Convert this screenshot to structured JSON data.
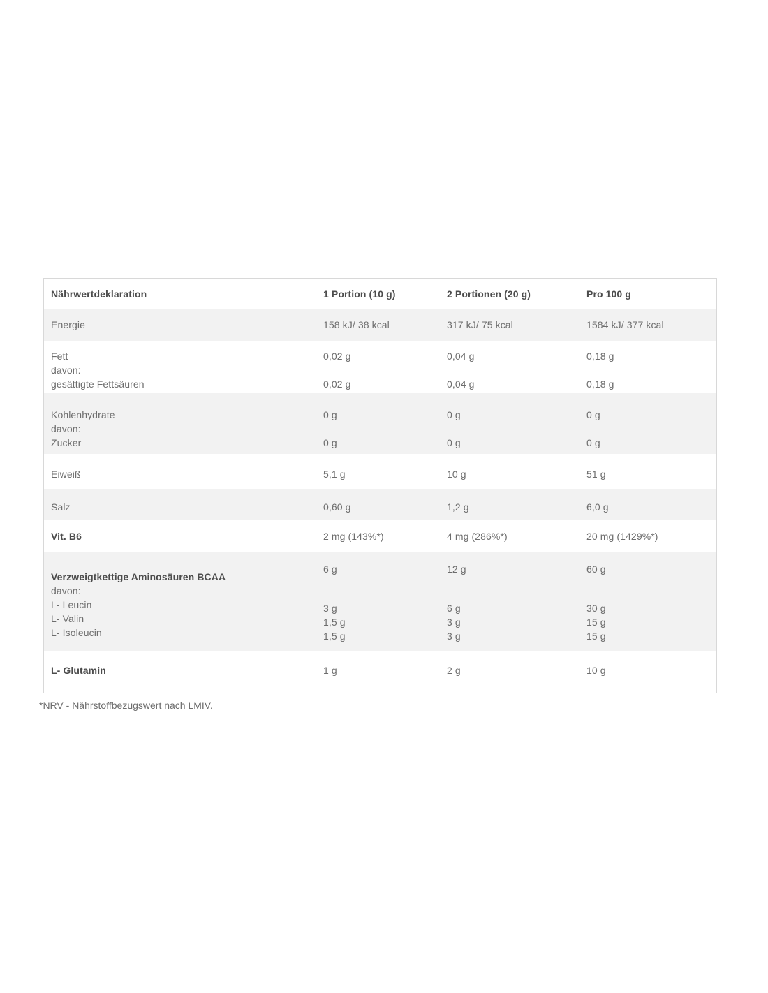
{
  "colors": {
    "row_alt_bg": "#f2f2f2",
    "text_regular": "#6d6d6d",
    "text_bold": "#4c4c4c",
    "table_border": "#d8d8d8"
  },
  "table": {
    "header": {
      "label": "Nährwertdeklaration",
      "portion1": "1 Portion (10 g)",
      "portion2": "2 Portionen (20 g)",
      "per100": "Pro 100 g"
    },
    "rows": {
      "energie": {
        "label": "Energie",
        "v1": "158 kJ/ 38 kcal",
        "v2": "317 kJ/ 75 kcal",
        "v3": "1584 kJ/ 377 kcal"
      },
      "fett": {
        "label": "Fett",
        "davon_label": "davon:",
        "sub_label": "gesättigte Fettsäuren",
        "v1": "0,02 g",
        "v2": "0,04 g",
        "v3": "0,18 g",
        "sub_v1": "0,02 g",
        "sub_v2": "0,04 g",
        "sub_v3": "0,18 g"
      },
      "kohlenhydrate": {
        "label": "Kohlenhydrate",
        "davon_label": "davon:",
        "sub_label": "Zucker",
        "v1": "0 g",
        "v2": "0 g",
        "v3": "0 g",
        "sub_v1": "0 g",
        "sub_v2": "0 g",
        "sub_v3": "0 g"
      },
      "eiweiss": {
        "label": "Eiweiß",
        "v1": "5,1 g",
        "v2": "10 g",
        "v3": "51 g"
      },
      "salz": {
        "label": "Salz",
        "v1": "0,60 g",
        "v2": "1,2 g",
        "v3": "6,0 g"
      },
      "vit_b6": {
        "label": "Vit. B6",
        "v1": "2 mg (143%*)",
        "v2": "4 mg (286%*)",
        "v3": "20 mg (1429%*)"
      },
      "bcaa": {
        "label": "Verzweigtkettige Aminosäuren BCAA",
        "davon_label": "davon:",
        "v1": "6 g",
        "v2": "12 g",
        "v3": "60 g",
        "leucin": {
          "label": "L- Leucin",
          "v1": "3 g",
          "v2": "6 g",
          "v3": "30 g"
        },
        "valin": {
          "label": "L- Valin",
          "v1": "1,5 g",
          "v2": "3 g",
          "v3": "15 g"
        },
        "isoleucin": {
          "label": "L- Isoleucin",
          "v1": "1,5 g",
          "v2": "3 g",
          "v3": "15 g"
        }
      },
      "glutamin": {
        "label": "L- Glutamin",
        "v1": "1 g",
        "v2": "2 g",
        "v3": "10 g"
      }
    }
  },
  "footnote": "*NRV - Nährstoffbezugswert nach LMIV."
}
